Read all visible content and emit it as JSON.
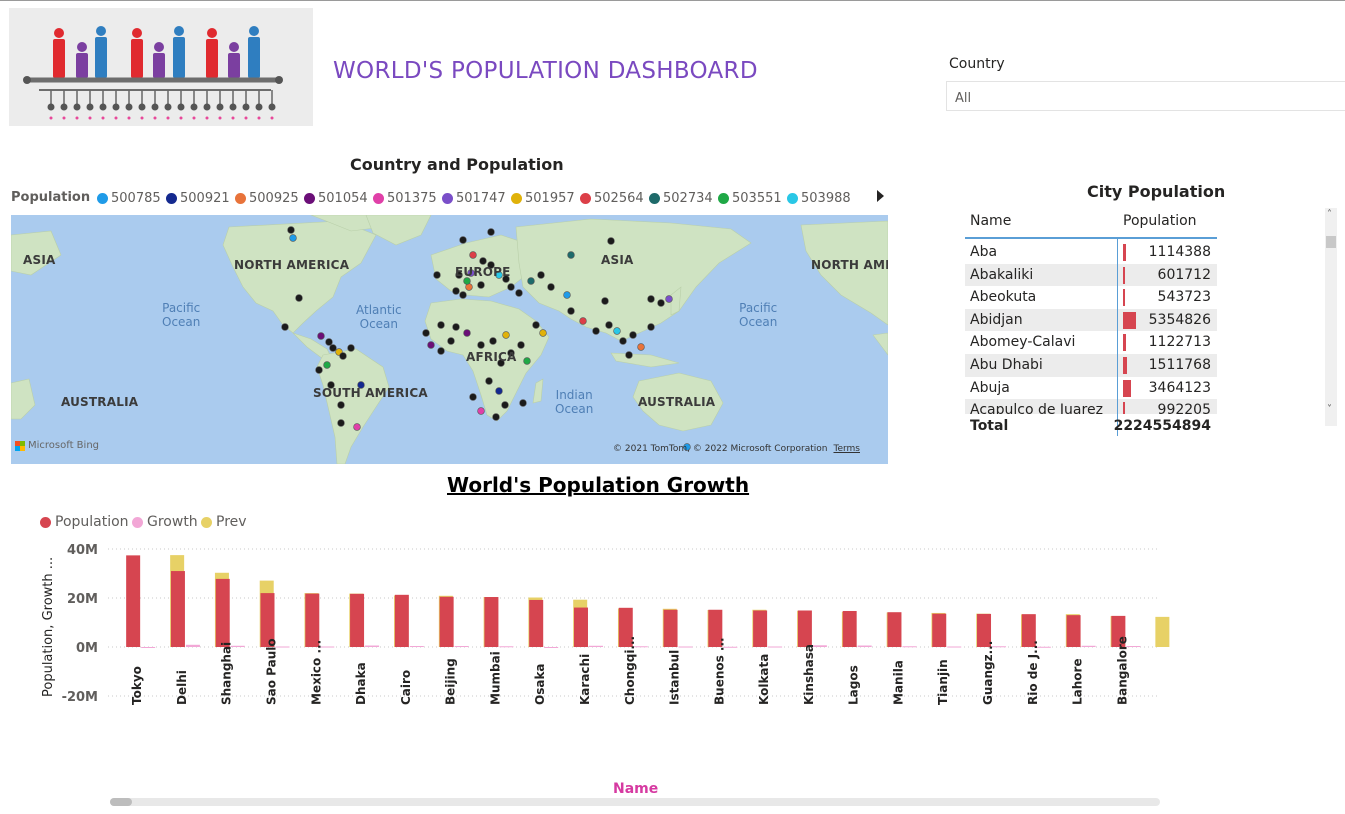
{
  "header": {
    "title": "WORLD'S POPULATION DASHBOARD",
    "logo_icon": "population-people-icon"
  },
  "slicer": {
    "label": "Country",
    "value": "All"
  },
  "map_visual": {
    "title": "Country and Population",
    "legend_label": "Population",
    "legend": [
      {
        "label": "500785",
        "color": "#1f9be8"
      },
      {
        "label": "500921",
        "color": "#14298f"
      },
      {
        "label": "500925",
        "color": "#e8733a"
      },
      {
        "label": "501054",
        "color": "#6b0f78"
      },
      {
        "label": "501375",
        "color": "#e040a8"
      },
      {
        "label": "501747",
        "color": "#7a4fc9"
      },
      {
        "label": "501957",
        "color": "#e0b20a"
      },
      {
        "label": "502564",
        "color": "#dc3f48"
      },
      {
        "label": "502734",
        "color": "#1e6a6a"
      },
      {
        "label": "503551",
        "color": "#1fa846"
      },
      {
        "label": "503988",
        "color": "#29c7e6"
      }
    ],
    "continent_labels": {
      "asia_left": "ASIA",
      "north_america": "NORTH AMERICA",
      "europe": "EUROPE",
      "asia": "ASIA",
      "north_america_right": "NORTH AME",
      "africa": "AFRICA",
      "south_america": "SOUTH AMERICA",
      "australia_left": "AUSTRALIA",
      "australia": "AUSTRALIA"
    },
    "ocean_labels": {
      "pacific_left": "Pacific\nOcean",
      "atlantic": "Atlantic\nOcean",
      "indian": "Indian\nOcean",
      "pacific_right": "Pacific\nOcean"
    },
    "attribution": "Microsoft Bing",
    "copyright": "© 2021 TomTom, © 2022 Microsoft Corporation",
    "terms": "Terms"
  },
  "city_table": {
    "title": "City Population",
    "col_name": "Name",
    "col_population": "Population",
    "rows": [
      {
        "name": "Aba",
        "population": "1114388",
        "value": 1114388
      },
      {
        "name": "Abakaliki",
        "population": "601712",
        "value": 601712
      },
      {
        "name": "Abeokuta",
        "population": "543723",
        "value": 543723
      },
      {
        "name": "Abidjan",
        "population": "5354826",
        "value": 5354826
      },
      {
        "name": "Abomey-Calavi",
        "population": "1122713",
        "value": 1122713
      },
      {
        "name": "Abu Dhabi",
        "population": "1511768",
        "value": 1511768
      },
      {
        "name": "Abuja",
        "population": "3464123",
        "value": 3464123
      },
      {
        "name": "Acapulco de Juarez",
        "population": "992205",
        "value": 992205
      }
    ],
    "total_label": "Total",
    "total_value": "2224554894"
  },
  "chart_title": "World's Population Growth",
  "chart_data": {
    "type": "bar",
    "xlabel": "Name",
    "ylabel": "Population, Growth ...",
    "ylim": [
      -20000000,
      40000000
    ],
    "yticks": [
      {
        "value": 40000000,
        "label": "40M"
      },
      {
        "value": 20000000,
        "label": "20M"
      },
      {
        "value": 0,
        "label": "0M"
      },
      {
        "value": -20000000,
        "label": "-20M"
      }
    ],
    "grid": true,
    "legend_position": "top-left",
    "categories": [
      "Tokyo",
      "Delhi",
      "Shanghai",
      "Sao Paulo",
      "Mexico ...",
      "Dhaka",
      "Cairo",
      "Beijing",
      "Mumbai",
      "Osaka",
      "Karachi",
      "Chongqi...",
      "Istanbul",
      "Buenos ...",
      "Kolkata",
      "Kinshasa",
      "Lagos",
      "Manila",
      "Tianjin",
      "Guangz...",
      "Rio de J...",
      "Lahore",
      "Bangalore"
    ],
    "series": [
      {
        "name": "Population",
        "color": "#d64550",
        "values": [
          37400000,
          31000000,
          27800000,
          22000000,
          21800000,
          21700000,
          21300000,
          20500000,
          20400000,
          19200000,
          16100000,
          16000000,
          15200000,
          15200000,
          14900000,
          14900000,
          14700000,
          14200000,
          13600000,
          13500000,
          13400000,
          13000000,
          12700000
        ]
      },
      {
        "name": "Growth",
        "color": "#f2a7d6",
        "values": [
          -200000,
          900000,
          500000,
          200000,
          200000,
          600000,
          400000,
          400000,
          300000,
          -100000,
          500000,
          300000,
          200000,
          100000,
          200000,
          700000,
          600000,
          300000,
          200000,
          300000,
          100000,
          500000,
          400000
        ]
      },
      {
        "name": "Prev",
        "color": "#e7d166",
        "values": [
          37500000,
          30300000,
          27100000,
          22000000,
          21800000,
          21000000,
          20900000,
          20400000,
          20200000,
          19300000,
          15700000,
          15600000,
          15100000,
          15200000,
          14800000,
          14300000,
          14100000,
          13900000,
          13600000,
          13300000,
          13400000,
          12600000,
          12300000
        ]
      }
    ]
  }
}
